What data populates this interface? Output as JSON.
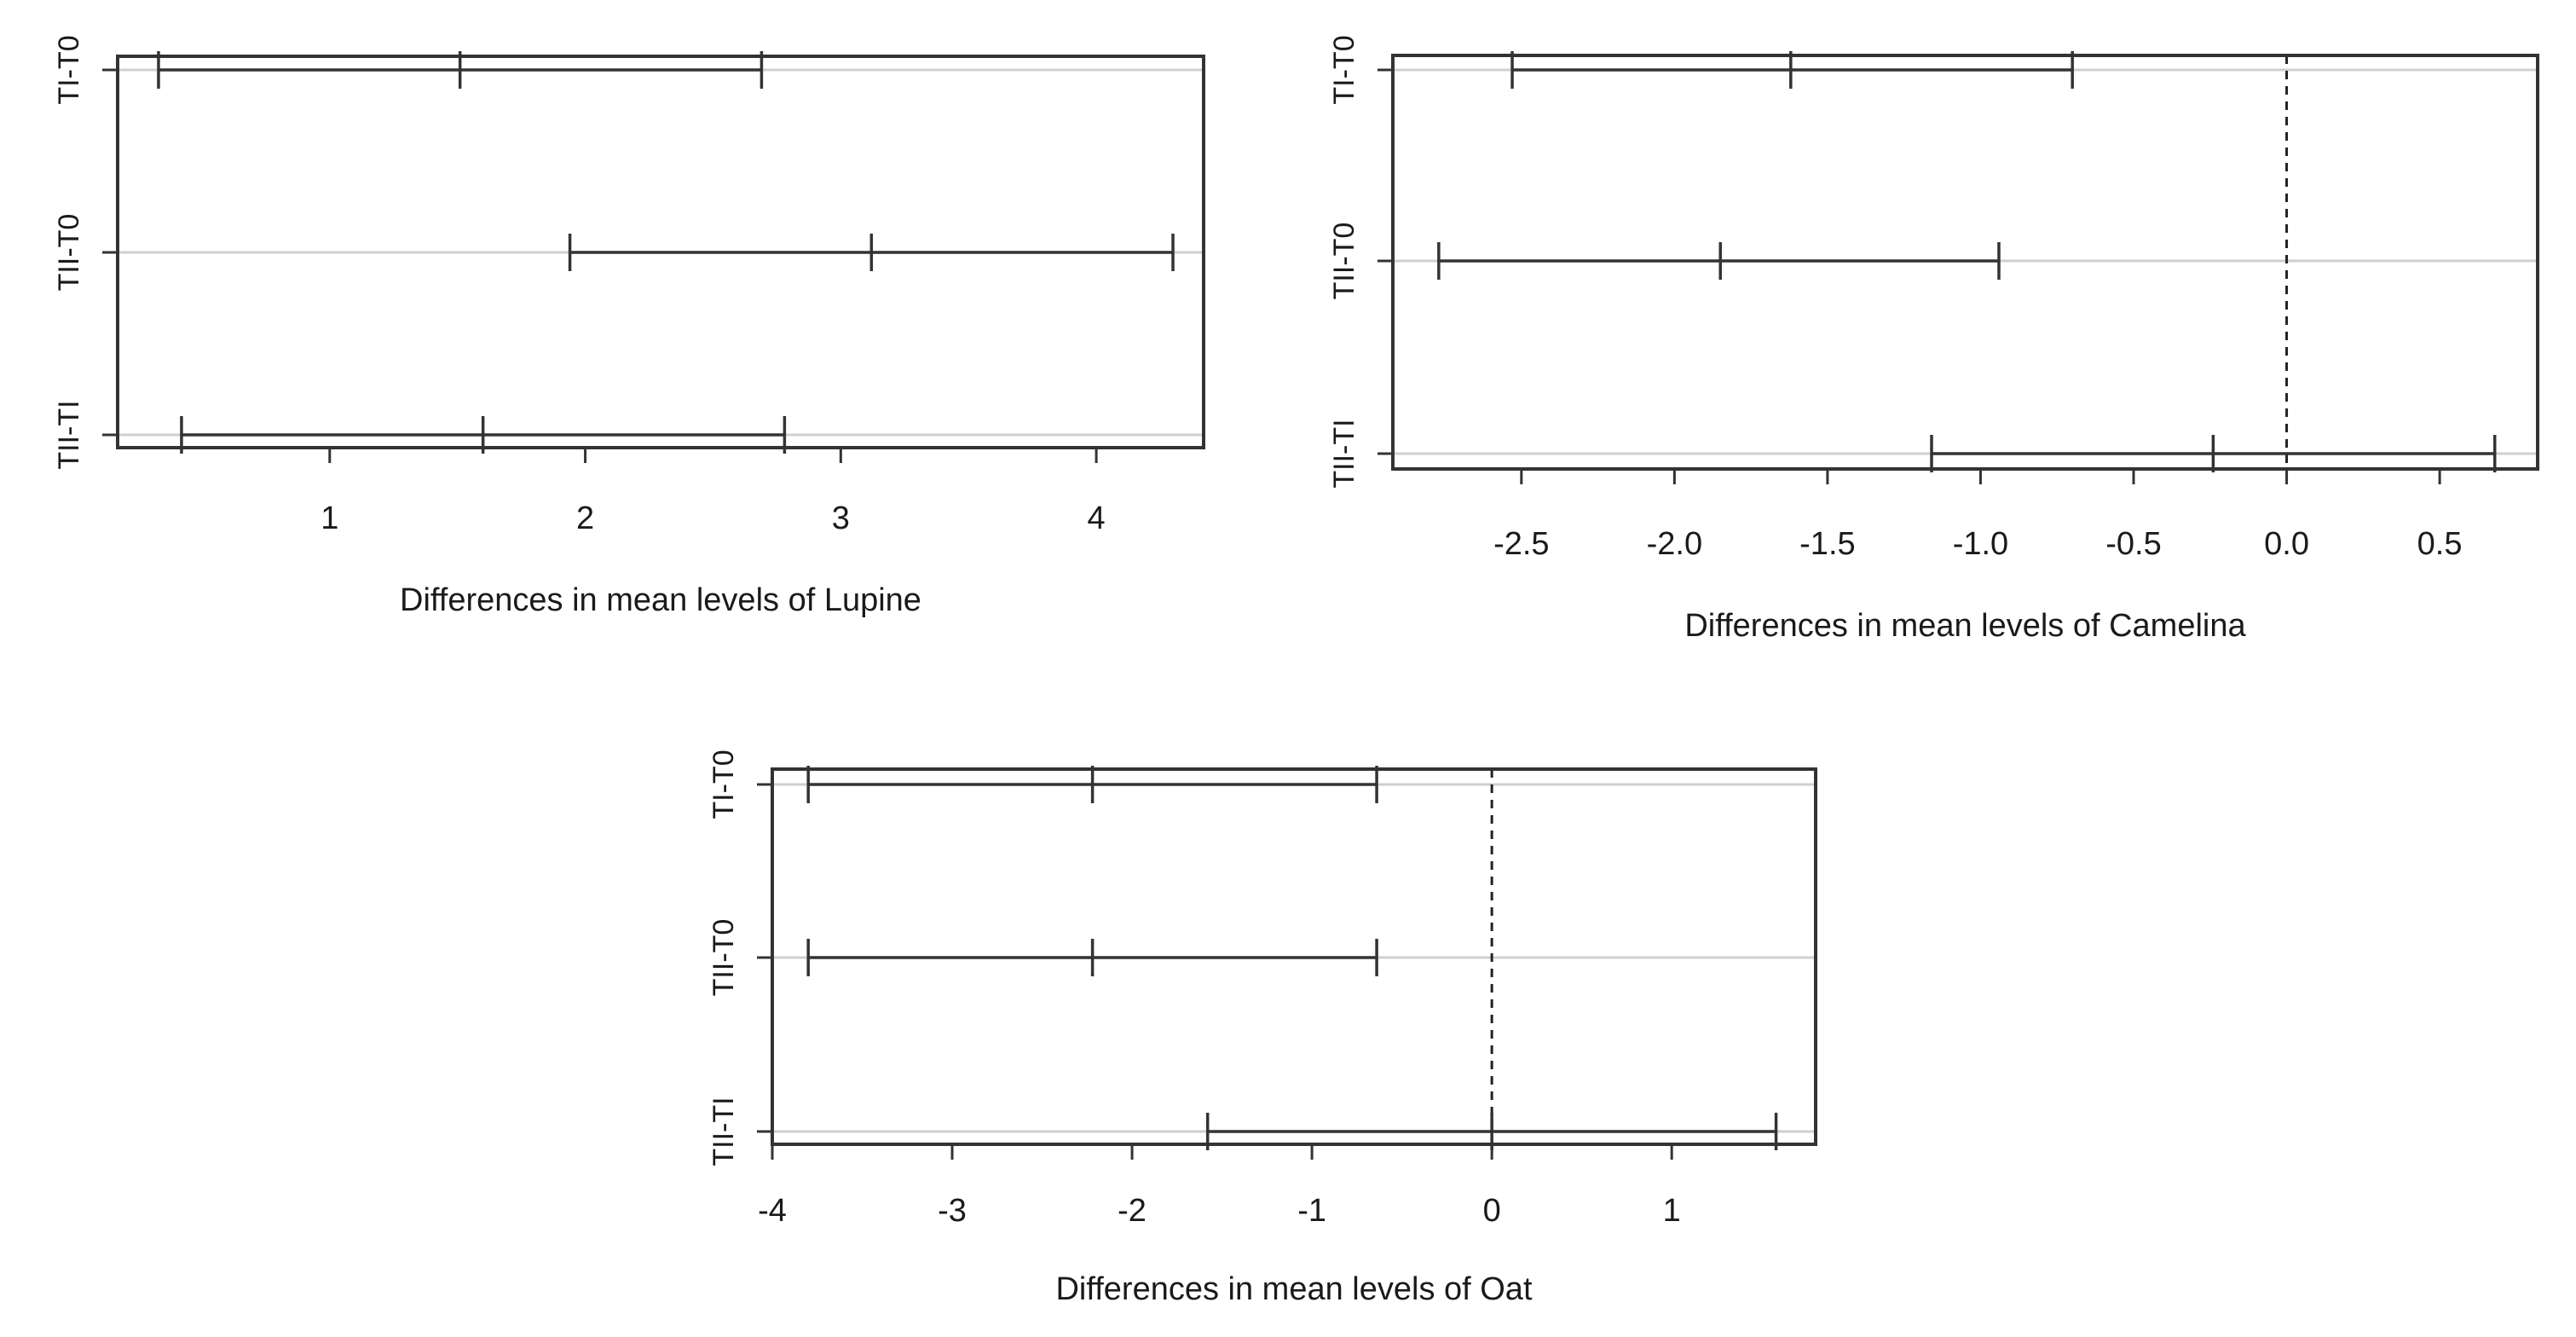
{
  "chart_data": [
    {
      "type": "interval",
      "xlabel": "Differences in mean levels of Lupine",
      "xlim": [
        0.17,
        4.42
      ],
      "xticks": [
        "1",
        "2",
        "3",
        "4"
      ],
      "zero_line": false,
      "categories": [
        "TI-T0",
        "TII-T0",
        "TII-TI"
      ],
      "intervals": [
        {
          "label": "TI-T0",
          "lwr": 0.33,
          "diff": 1.51,
          "upr": 2.69
        },
        {
          "label": "TII-T0",
          "lwr": 1.94,
          "diff": 3.12,
          "upr": 4.3
        },
        {
          "label": "TII-TI",
          "lwr": 0.42,
          "diff": 1.6,
          "upr": 2.78
        }
      ]
    },
    {
      "type": "interval",
      "xlabel": "Differences in mean levels of Camelina",
      "xlim": [
        -2.92,
        0.82
      ],
      "xticks": [
        "-2.5",
        "-2.0",
        "-1.5",
        "-1.0",
        "-0.5",
        "0.0",
        "0.5"
      ],
      "zero_line": true,
      "categories": [
        "TI-T0",
        "TII-T0",
        "TII-TI"
      ],
      "intervals": [
        {
          "label": "TI-T0",
          "lwr": -2.53,
          "diff": -1.62,
          "upr": -0.7
        },
        {
          "label": "TII-T0",
          "lwr": -2.77,
          "diff": -1.85,
          "upr": -0.94
        },
        {
          "label": "TII-TI",
          "lwr": -1.16,
          "diff": -0.24,
          "upr": 0.68
        }
      ]
    },
    {
      "type": "interval",
      "xlabel": "Differences in mean levels of Oat",
      "xlim": [
        -4.0,
        1.8
      ],
      "xticks": [
        "-4",
        "-3",
        "-2",
        "-1",
        "0",
        "1"
      ],
      "zero_line": true,
      "categories": [
        "TI-T0",
        "TII-T0",
        "TII-TI"
      ],
      "intervals": [
        {
          "label": "TI-T0",
          "lwr": -3.8,
          "diff": -2.22,
          "upr": -0.64
        },
        {
          "label": "TII-T0",
          "lwr": -3.8,
          "diff": -2.22,
          "upr": -0.64
        },
        {
          "label": "TII-TI",
          "lwr": -1.58,
          "diff": 0.0,
          "upr": 1.58
        }
      ]
    }
  ]
}
